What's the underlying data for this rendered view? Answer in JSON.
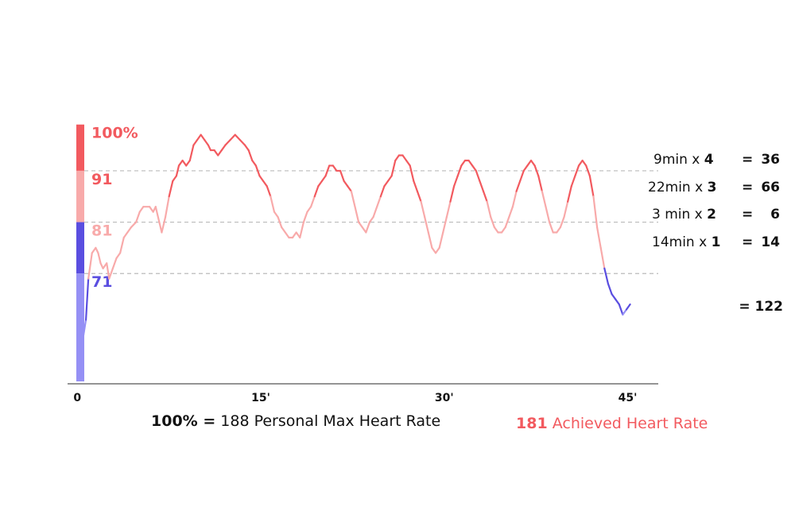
{
  "colors": {
    "zone5": "#f25a5f",
    "zone4": "#f8aaaa",
    "zone3": "#5a4ee0",
    "zone2": "#9590f5",
    "axis": "#555555",
    "gridline": "#bbbbbb"
  },
  "chart_data": {
    "type": "line",
    "title": "",
    "xlabel": "",
    "ylabel": "",
    "x_ticks": [
      {
        "value": 0,
        "label": "0"
      },
      {
        "value": 15,
        "label": "15'"
      },
      {
        "value": 30,
        "label": "30'"
      },
      {
        "value": 45,
        "label": "45'"
      }
    ],
    "xlim": [
      -0.8,
      47.5
    ],
    "ylim": [
      50,
      108
    ],
    "zones": [
      {
        "from": 91,
        "to": 100,
        "label": "100%",
        "color": "#f25a5f"
      },
      {
        "from": 81,
        "to": 91,
        "label": "91",
        "color": "#f25a5f"
      },
      {
        "from": 71,
        "to": 81,
        "label": "81",
        "color": "#f8aaaa"
      },
      {
        "from": 50,
        "to": 71,
        "label": "71",
        "color": "#5a4ee0"
      }
    ],
    "zone_bar_colors": [
      {
        "from": 91,
        "to": 100,
        "color": "#f25a5f"
      },
      {
        "from": 81,
        "to": 91,
        "color": "#f8aaaa"
      },
      {
        "from": 71,
        "to": 81,
        "color": "#5a4ee0"
      },
      {
        "from": 50,
        "to": 71,
        "color": "#9590f5"
      }
    ],
    "threshold_lines": [
      91,
      81,
      71
    ],
    "line_color_bands": [
      {
        "min": 86,
        "color": "#f25a5f"
      },
      {
        "min": 71,
        "color": "#f8aaaa"
      },
      {
        "min": 64,
        "color": "#5a4ee0"
      },
      {
        "min": 0,
        "color": "#9590f5"
      }
    ],
    "series": [
      {
        "points": [
          [
            0,
            59
          ],
          [
            0.5,
            59
          ],
          [
            0.7,
            62
          ],
          [
            0.9,
            70
          ],
          [
            1.2,
            75
          ],
          [
            1.5,
            76
          ],
          [
            1.7,
            75
          ],
          [
            1.9,
            73
          ],
          [
            2.1,
            72
          ],
          [
            2.4,
            73
          ],
          [
            2.6,
            70
          ],
          [
            2.9,
            72
          ],
          [
            3.2,
            74
          ],
          [
            3.5,
            75
          ],
          [
            3.8,
            78
          ],
          [
            4.1,
            79
          ],
          [
            4.4,
            80
          ],
          [
            4.8,
            81
          ],
          [
            5.1,
            83
          ],
          [
            5.4,
            84
          ],
          [
            5.9,
            84
          ],
          [
            6.2,
            83
          ],
          [
            6.4,
            84
          ],
          [
            6.7,
            81
          ],
          [
            6.9,
            79
          ],
          [
            7.2,
            82
          ],
          [
            7.5,
            86
          ],
          [
            7.8,
            89
          ],
          [
            8.1,
            90
          ],
          [
            8.3,
            92
          ],
          [
            8.6,
            93
          ],
          [
            8.9,
            92
          ],
          [
            9.2,
            93
          ],
          [
            9.5,
            96
          ],
          [
            9.8,
            97
          ],
          [
            10.1,
            98
          ],
          [
            10.4,
            97
          ],
          [
            10.7,
            96
          ],
          [
            10.9,
            95
          ],
          [
            11.2,
            95
          ],
          [
            11.5,
            94
          ],
          [
            11.8,
            95
          ],
          [
            12.1,
            96
          ],
          [
            12.5,
            97
          ],
          [
            12.9,
            98
          ],
          [
            13.3,
            97
          ],
          [
            13.7,
            96
          ],
          [
            14.0,
            95
          ],
          [
            14.3,
            93
          ],
          [
            14.6,
            92
          ],
          [
            14.9,
            90
          ],
          [
            15.2,
            89
          ],
          [
            15.5,
            88
          ],
          [
            15.8,
            86
          ],
          [
            16.1,
            83
          ],
          [
            16.4,
            82
          ],
          [
            16.7,
            80
          ],
          [
            17.0,
            79
          ],
          [
            17.3,
            78
          ],
          [
            17.6,
            78
          ],
          [
            17.9,
            79
          ],
          [
            18.2,
            78
          ],
          [
            18.5,
            81
          ],
          [
            18.8,
            83
          ],
          [
            19.1,
            84
          ],
          [
            19.4,
            86
          ],
          [
            19.7,
            88
          ],
          [
            20.0,
            89
          ],
          [
            20.3,
            90
          ],
          [
            20.6,
            92
          ],
          [
            20.9,
            92
          ],
          [
            21.2,
            91
          ],
          [
            21.5,
            91
          ],
          [
            21.8,
            89
          ],
          [
            22.1,
            88
          ],
          [
            22.4,
            87
          ],
          [
            22.7,
            84
          ],
          [
            23.0,
            81
          ],
          [
            23.3,
            80
          ],
          [
            23.6,
            79
          ],
          [
            23.9,
            81
          ],
          [
            24.2,
            82
          ],
          [
            24.5,
            84
          ],
          [
            24.8,
            86
          ],
          [
            25.1,
            88
          ],
          [
            25.4,
            89
          ],
          [
            25.7,
            90
          ],
          [
            26.0,
            93
          ],
          [
            26.3,
            94
          ],
          [
            26.6,
            94
          ],
          [
            26.9,
            93
          ],
          [
            27.2,
            92
          ],
          [
            27.5,
            89
          ],
          [
            27.8,
            87
          ],
          [
            28.1,
            85
          ],
          [
            28.4,
            82
          ],
          [
            28.7,
            79
          ],
          [
            29.0,
            76
          ],
          [
            29.3,
            75
          ],
          [
            29.6,
            76
          ],
          [
            29.9,
            79
          ],
          [
            30.2,
            82
          ],
          [
            30.5,
            85
          ],
          [
            30.8,
            88
          ],
          [
            31.1,
            90
          ],
          [
            31.4,
            92
          ],
          [
            31.7,
            93
          ],
          [
            32.0,
            93
          ],
          [
            32.3,
            92
          ],
          [
            32.6,
            91
          ],
          [
            32.9,
            89
          ],
          [
            33.2,
            87
          ],
          [
            33.5,
            85
          ],
          [
            33.8,
            82
          ],
          [
            34.1,
            80
          ],
          [
            34.4,
            79
          ],
          [
            34.7,
            79
          ],
          [
            35.0,
            80
          ],
          [
            35.3,
            82
          ],
          [
            35.6,
            84
          ],
          [
            35.9,
            87
          ],
          [
            36.2,
            89
          ],
          [
            36.5,
            91
          ],
          [
            36.8,
            92
          ],
          [
            37.1,
            93
          ],
          [
            37.4,
            92
          ],
          [
            37.7,
            90
          ],
          [
            38.0,
            87
          ],
          [
            38.3,
            84
          ],
          [
            38.6,
            81
          ],
          [
            38.9,
            79
          ],
          [
            39.2,
            79
          ],
          [
            39.5,
            80
          ],
          [
            39.8,
            82
          ],
          [
            40.1,
            85
          ],
          [
            40.4,
            88
          ],
          [
            40.7,
            90
          ],
          [
            41.0,
            92
          ],
          [
            41.3,
            93
          ],
          [
            41.6,
            92
          ],
          [
            41.9,
            90
          ],
          [
            42.2,
            86
          ],
          [
            42.5,
            80
          ],
          [
            42.8,
            76
          ],
          [
            43.1,
            72
          ],
          [
            43.4,
            69
          ],
          [
            43.7,
            67
          ],
          [
            44.0,
            66
          ],
          [
            44.3,
            65
          ],
          [
            44.6,
            63
          ],
          [
            44.9,
            64
          ],
          [
            45.2,
            65
          ]
        ]
      }
    ]
  },
  "calculation": {
    "rows": [
      {
        "duration": "9min x ",
        "zone": "4",
        "equals": "=",
        "result": "36"
      },
      {
        "duration": "22min x ",
        "zone": "3",
        "equals": "=",
        "result": "66"
      },
      {
        "duration": "3 min x ",
        "zone": "2",
        "equals": "=",
        "result": "6"
      },
      {
        "duration": "14min x ",
        "zone": "1",
        "equals": "=",
        "result": "14"
      }
    ],
    "total": "= 122"
  },
  "footer": {
    "max_percent": "100% =",
    "max_text": " 188 Personal Max Heart Rate",
    "achieved_value": "181",
    "achieved_text": " Achieved Heart Rate"
  }
}
